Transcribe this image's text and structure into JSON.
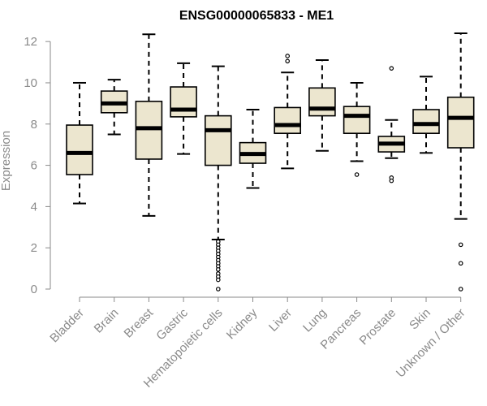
{
  "chart_data": {
    "type": "box",
    "title": "ENSG00000065833 - ME1",
    "xlabel": "",
    "ylabel": "Expression",
    "ylim": [
      0,
      12.4
    ],
    "yticks": [
      0,
      2,
      4,
      6,
      8,
      10,
      12
    ],
    "categories": [
      "Bladder",
      "Brain",
      "Breast",
      "Gastric",
      "Hematopoietic cells",
      "Kidney",
      "Liver",
      "Lung",
      "Pancreas",
      "Prostate",
      "Skin",
      "Unknown / Other"
    ],
    "boxes": [
      {
        "category": "Bladder",
        "min": 4.15,
        "q1": 5.55,
        "median": 6.6,
        "q3": 7.95,
        "max": 10.0,
        "outliers": []
      },
      {
        "category": "Brain",
        "min": 7.5,
        "q1": 8.55,
        "median": 9.0,
        "q3": 9.6,
        "max": 10.15,
        "outliers": []
      },
      {
        "category": "Breast",
        "min": 3.55,
        "q1": 6.3,
        "median": 7.8,
        "q3": 9.1,
        "max": 12.35,
        "outliers": []
      },
      {
        "category": "Gastric",
        "min": 6.55,
        "q1": 8.35,
        "median": 8.7,
        "q3": 9.8,
        "max": 10.95,
        "outliers": []
      },
      {
        "category": "Hematopoietic cells",
        "min": 2.4,
        "q1": 6.0,
        "median": 7.7,
        "q3": 8.4,
        "max": 10.8,
        "outliers": [
          2.3,
          2.15,
          2.0,
          1.85,
          1.7,
          1.55,
          1.4,
          1.25,
          1.1,
          0.95,
          0.75,
          0.6,
          0.45,
          0.0
        ]
      },
      {
        "category": "Kidney",
        "min": 4.9,
        "q1": 6.1,
        "median": 6.55,
        "q3": 7.1,
        "max": 8.7,
        "outliers": []
      },
      {
        "category": "Liver",
        "min": 5.85,
        "q1": 7.55,
        "median": 7.95,
        "q3": 8.8,
        "max": 10.5,
        "outliers": [
          11.3,
          11.05
        ]
      },
      {
        "category": "Lung",
        "min": 6.7,
        "q1": 8.4,
        "median": 8.75,
        "q3": 9.75,
        "max": 11.1,
        "outliers": []
      },
      {
        "category": "Pancreas",
        "min": 6.2,
        "q1": 7.55,
        "median": 8.4,
        "q3": 8.85,
        "max": 10.0,
        "outliers": [
          5.55
        ]
      },
      {
        "category": "Prostate",
        "min": 6.35,
        "q1": 6.65,
        "median": 7.05,
        "q3": 7.4,
        "max": 8.2,
        "outliers": [
          10.7,
          5.4,
          5.25
        ]
      },
      {
        "category": "Skin",
        "min": 6.6,
        "q1": 7.55,
        "median": 8.0,
        "q3": 8.7,
        "max": 10.3,
        "outliers": []
      },
      {
        "category": "Unknown / Other",
        "min": 3.4,
        "q1": 6.85,
        "median": 8.3,
        "q3": 9.3,
        "max": 12.4,
        "outliers": [
          2.15,
          1.25,
          0.0
        ]
      }
    ],
    "colors": {
      "box_fill": "#ece6cf",
      "box_stroke": "#000000",
      "axis": "#8a8a8a"
    }
  }
}
